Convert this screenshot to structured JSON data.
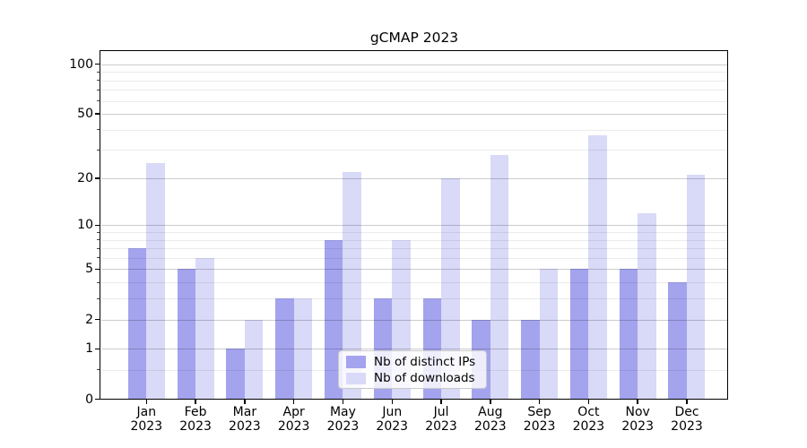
{
  "chart_data": {
    "type": "bar",
    "title": "gCMAP 2023",
    "year": "2023",
    "categories": [
      "Jan",
      "Feb",
      "Mar",
      "Apr",
      "May",
      "Jun",
      "Jul",
      "Aug",
      "Sep",
      "Oct",
      "Nov",
      "Dec"
    ],
    "series": [
      {
        "name": "Nb of distinct IPs",
        "color": "#a3a3ee",
        "values": [
          7,
          5,
          1,
          3,
          8,
          3,
          3,
          2,
          2,
          5,
          5,
          4
        ]
      },
      {
        "name": "Nb of downloads",
        "color": "#d9d9f8",
        "values": [
          25,
          6,
          2,
          3,
          22,
          8,
          20,
          28,
          5,
          37,
          12,
          21
        ]
      }
    ],
    "y_scale": "log2(1+x)",
    "y_axis": {
      "tick_labels": [
        0,
        1,
        2,
        5,
        10,
        20,
        50,
        100
      ],
      "major_gridlines": [
        1,
        2,
        5,
        10,
        20,
        50,
        100
      ],
      "minor_gridlines": [
        0.5,
        3,
        4,
        6,
        7,
        8,
        9,
        30,
        40,
        60,
        70,
        80,
        90
      ],
      "ylim": [
        0,
        120
      ]
    },
    "grid": true,
    "grid_above_bars": true,
    "legend_position": "lower center",
    "background_color": "#ffffff"
  }
}
